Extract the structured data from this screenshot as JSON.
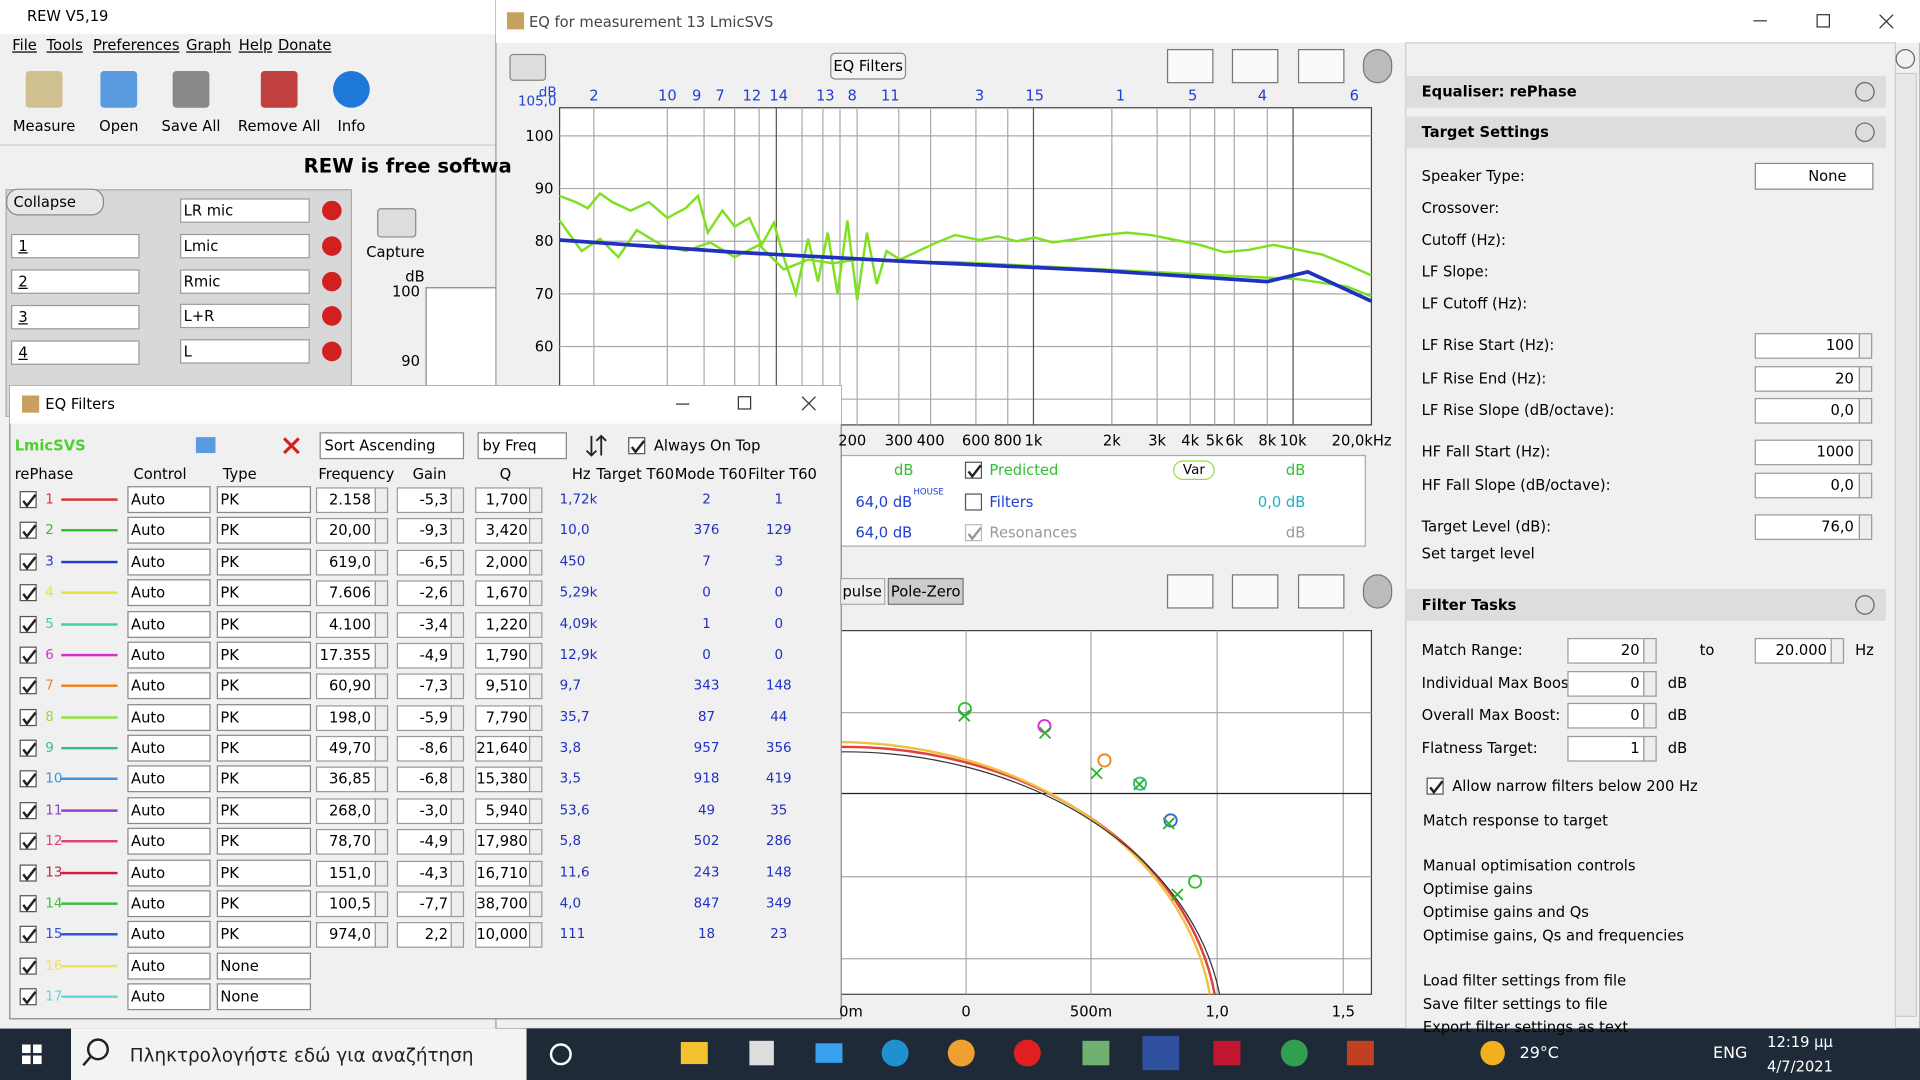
{
  "rew_window": {
    "title": "REW V5,19",
    "menu": [
      "File",
      "Tools",
      "Preferences",
      "Graph",
      "Help",
      "Donate"
    ],
    "toolbar": [
      "Measure",
      "Open",
      "Save All",
      "Remove All",
      "Info"
    ],
    "banner": "REW is free softwa",
    "collapse": "Collapse",
    "measurement_names": [
      "LR mic",
      "Lmic",
      "Rmic",
      "L+R",
      "L"
    ],
    "measurement_numbers": [
      "1",
      "2",
      "3",
      "4"
    ],
    "capture": "Capture",
    "axis_unit": "dB",
    "axis_labels": [
      "100",
      "90"
    ]
  },
  "eq_window": {
    "title": "EQ for measurement 13 LmicSVS",
    "eq_filters_button": "EQ Filters",
    "filter_markers": [
      "2",
      "10",
      "9",
      "7",
      "12",
      "14",
      "13",
      "8",
      "11",
      "3",
      "15",
      "1",
      "5",
      "4",
      "6"
    ],
    "y_unit": "dB",
    "y_top": "105,0",
    "y_labels": [
      "100",
      "90",
      "80",
      "70",
      "60"
    ],
    "x_labels": [
      "200",
      "300",
      "400",
      "600",
      "800",
      "1k",
      "2k",
      "3k",
      "4k",
      "5k",
      "6k",
      "8k",
      "10k",
      "20,0kHz"
    ],
    "legend": [
      {
        "left": "dB",
        "check": "Predicted",
        "checked": true,
        "mid": "Var",
        "right": "dB"
      },
      {
        "left": "64,0 dB",
        "sup": "HOUSE",
        "check": "Filters",
        "checked": false,
        "right": "0,0 dB"
      },
      {
        "left": "64,0 dB",
        "check": "Resonances",
        "checked": true,
        "right": "dB"
      }
    ],
    "tabs": [
      "pulse",
      "Pole-Zero"
    ],
    "pz_x_labels": [
      "0m",
      "0",
      "500m",
      "1,0",
      "1,5"
    ]
  },
  "right_panel": {
    "equaliser": "Equaliser: rePhase",
    "target_settings": "Target Settings",
    "fields": [
      {
        "label": "Speaker Type:",
        "value": "None"
      },
      {
        "label": "Crossover:"
      },
      {
        "label": "Cutoff (Hz):"
      },
      {
        "label": "LF Slope:"
      },
      {
        "label": "LF Cutoff (Hz):"
      },
      {
        "label": "LF Rise Start (Hz):",
        "value": "100"
      },
      {
        "label": "LF Rise End (Hz):",
        "value": "20"
      },
      {
        "label": "LF Rise Slope (dB/octave):",
        "value": "0,0"
      },
      {
        "label": "HF Fall Start (Hz):",
        "value": "1000"
      },
      {
        "label": "HF Fall Slope (dB/octave):",
        "value": "0,0"
      },
      {
        "label": "Target Level (dB):",
        "value": "76,0"
      },
      {
        "label": "Set target level"
      }
    ],
    "filter_tasks": "Filter Tasks",
    "match_range": {
      "label": "Match Range:",
      "from": "20",
      "to": "to",
      "end": "20.000",
      "unit": "Hz"
    },
    "boosts": [
      {
        "label": "Individual Max Boost:",
        "value": "0",
        "unit": "dB"
      },
      {
        "label": "Overall Max Boost:",
        "value": "0",
        "unit": "dB"
      },
      {
        "label": "Flatness Target:",
        "value": "1",
        "unit": "dB"
      }
    ],
    "allow_narrow": "Allow narrow filters below 200 Hz",
    "match_response": "Match response to target",
    "links": [
      "Manual optimisation controls",
      "Optimise gains",
      "Optimise gains and Qs",
      "Optimise gains, Qs and frequencies"
    ],
    "file_links": [
      "Load filter settings from file",
      "Save filter settings to file",
      "Export filter settings as text"
    ]
  },
  "eq_dialog": {
    "title": "EQ Filters",
    "measurement": "LmicSVS",
    "sort": "Sort Ascending",
    "by": "by Freq",
    "always_on_top": "Always On Top",
    "headers": [
      "rePhase",
      "Control",
      "Type",
      "Frequency",
      "Gain",
      "Q",
      "Hz",
      "Target T60",
      "Mode T60",
      "Filter T60"
    ],
    "rows": [
      {
        "number": "1",
        "color": "#e03030",
        "control": "Auto",
        "type": "PK",
        "frequency": "2.158",
        "gain": "-5,3",
        "q": "1,700",
        "hz": "1,72k",
        "mode": "2",
        "filter": "1"
      },
      {
        "number": "2",
        "color": "#30c030",
        "control": "Auto",
        "type": "PK",
        "frequency": "20,00",
        "gain": "-9,3",
        "q": "3,420",
        "hz": "10,0",
        "mode": "376",
        "filter": "129"
      },
      {
        "number": "3",
        "color": "#2a3ad0",
        "control": "Auto",
        "type": "PK",
        "frequency": "619,0",
        "gain": "-6,5",
        "q": "2,000",
        "hz": "450",
        "mode": "7",
        "filter": "3"
      },
      {
        "number": "4",
        "color": "#e8e040",
        "control": "Auto",
        "type": "PK",
        "frequency": "7.606",
        "gain": "-2,6",
        "q": "1,670",
        "hz": "5,29k",
        "mode": "0",
        "filter": "0"
      },
      {
        "number": "5",
        "color": "#40d0a0",
        "control": "Auto",
        "type": "PK",
        "frequency": "4.100",
        "gain": "-3,4",
        "q": "1,220",
        "hz": "4,09k",
        "mode": "1",
        "filter": "0"
      },
      {
        "number": "6",
        "color": "#d030d0",
        "control": "Auto",
        "type": "PK",
        "frequency": "17.355",
        "gain": "-4,9",
        "q": "1,790",
        "hz": "12,9k",
        "mode": "0",
        "filter": "0"
      },
      {
        "number": "7",
        "color": "#f08020",
        "control": "Auto",
        "type": "PK",
        "frequency": "60,90",
        "gain": "-7,3",
        "q": "9,510",
        "hz": "9,7",
        "mode": "343",
        "filter": "148"
      },
      {
        "number": "8",
        "color": "#90e040",
        "control": "Auto",
        "type": "PK",
        "frequency": "198,0",
        "gain": "-5,9",
        "q": "7,790",
        "hz": "35,7",
        "mode": "87",
        "filter": "44"
      },
      {
        "number": "9",
        "color": "#30c080",
        "control": "Auto",
        "type": "PK",
        "frequency": "49,70",
        "gain": "-8,6",
        "q": "21,640",
        "hz": "3,8",
        "mode": "957",
        "filter": "356"
      },
      {
        "number": "10",
        "color": "#4090e0",
        "control": "Auto",
        "type": "PK",
        "frequency": "36,85",
        "gain": "-6,8",
        "q": "15,380",
        "hz": "3,5",
        "mode": "918",
        "filter": "419"
      },
      {
        "number": "11",
        "color": "#9040d0",
        "control": "Auto",
        "type": "PK",
        "frequency": "268,0",
        "gain": "-3,0",
        "q": "5,940",
        "hz": "53,6",
        "mode": "49",
        "filter": "35"
      },
      {
        "number": "12",
        "color": "#e04080",
        "control": "Auto",
        "type": "PK",
        "frequency": "78,70",
        "gain": "-4,9",
        "q": "17,980",
        "hz": "5,8",
        "mode": "502",
        "filter": "286"
      },
      {
        "number": "13",
        "color": "#d02040",
        "control": "Auto",
        "type": "PK",
        "frequency": "151,0",
        "gain": "-4,3",
        "q": "16,710",
        "hz": "11,6",
        "mode": "243",
        "filter": "148"
      },
      {
        "number": "14",
        "color": "#40c040",
        "control": "Auto",
        "type": "PK",
        "frequency": "100,5",
        "gain": "-7,7",
        "q": "38,700",
        "hz": "4,0",
        "mode": "847",
        "filter": "349"
      },
      {
        "number": "15",
        "color": "#3050e0",
        "control": "Auto",
        "type": "PK",
        "frequency": "974,0",
        "gain": "2,2",
        "q": "10,000",
        "hz": "111",
        "mode": "18",
        "filter": "23"
      },
      {
        "number": "16",
        "color": "#f0e060",
        "control": "Auto",
        "type": "None"
      },
      {
        "number": "17",
        "color": "#60d8d8",
        "control": "Auto",
        "type": "None"
      }
    ]
  },
  "taskbar": {
    "search": "Πληκτρολογήστε εδώ για αναζήτηση",
    "weather": "29°C",
    "language": "ENG",
    "time": "12:19 μμ",
    "date": "4/7/2021"
  }
}
